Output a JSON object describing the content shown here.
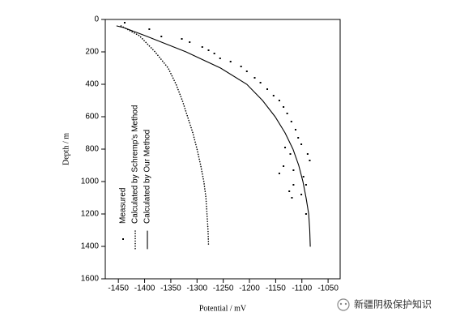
{
  "chart_data": {
    "type": "line",
    "x_label": "Potential / mV",
    "y_label": "Depth / m",
    "xlim": [
      -1475,
      -1027
    ],
    "xticks": [
      -1450,
      -1400,
      -1350,
      -1300,
      -1250,
      -1200,
      -1150,
      -1100,
      -1050
    ],
    "ylim": [
      1600,
      0
    ],
    "yticks": [
      0,
      200,
      400,
      600,
      800,
      1000,
      1200,
      1400,
      1600
    ],
    "series": [
      {
        "name": "Measured",
        "color": "#000000",
        "type": "scatter",
        "x": [
          -1438,
          -1391,
          -1368,
          -1329,
          -1314,
          -1290,
          -1278,
          -1267,
          -1256,
          -1236,
          -1216,
          -1205,
          -1190,
          -1179,
          -1166,
          -1154,
          -1143,
          -1135,
          -1128,
          -1120,
          -1112,
          -1107,
          -1101,
          -1132,
          -1122,
          -1089,
          -1085,
          -1135,
          -1116,
          -1143,
          -1097,
          -1092,
          -1116,
          -1124,
          -1119,
          -1101,
          -1092
        ],
        "values": [
          20,
          60,
          105,
          120,
          140,
          170,
          190,
          210,
          240,
          260,
          290,
          320,
          360,
          390,
          430,
          470,
          500,
          540,
          580,
          630,
          680,
          730,
          770,
          790,
          830,
          830,
          870,
          905,
          930,
          950,
          970,
          1020,
          1020,
          1060,
          1100,
          1080,
          1200
        ]
      },
      {
        "name": "Calculated by Schremp's Method",
        "color": "#000000",
        "type": "line",
        "line_style": "dotted",
        "x": [
          -1445,
          -1410,
          -1380,
          -1355,
          -1340,
          -1328,
          -1318,
          -1308,
          -1300,
          -1293,
          -1287,
          -1283,
          -1281,
          -1279,
          -1278
        ],
        "values": [
          40,
          100,
          200,
          300,
          400,
          500,
          600,
          700,
          800,
          900,
          1000,
          1100,
          1200,
          1300,
          1400
        ]
      },
      {
        "name": "Calculated by Our Method",
        "color": "#000000",
        "type": "line",
        "line_style": "solid",
        "x": [
          -1453,
          -1440,
          -1399,
          -1321,
          -1255,
          -1205,
          -1175,
          -1151,
          -1132,
          -1117,
          -1106,
          -1098,
          -1092,
          -1087,
          -1085,
          -1084
        ],
        "values": [
          40,
          50,
          100,
          200,
          300,
          400,
          500,
          600,
          700,
          800,
          900,
          1000,
          1100,
          1200,
          1300,
          1400
        ]
      }
    ]
  },
  "watermark": "新疆阴极保护知识"
}
